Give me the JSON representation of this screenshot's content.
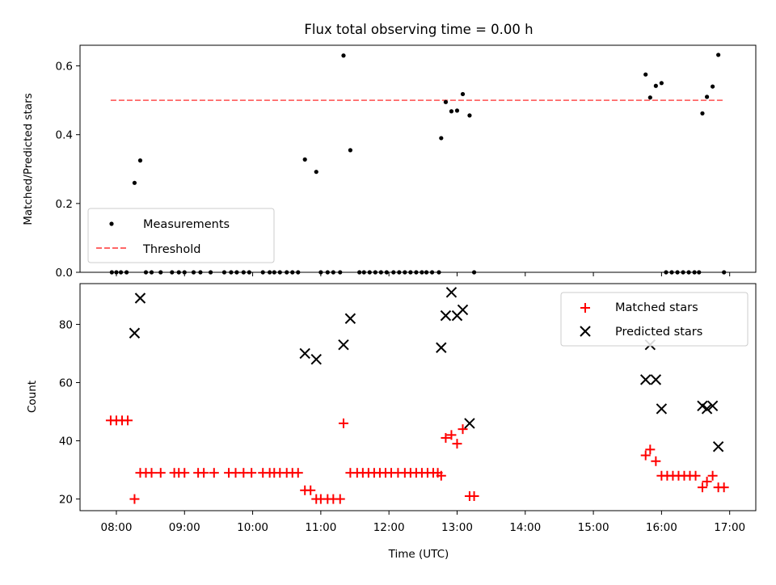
{
  "chart_data": [
    {
      "type": "scatter",
      "title": "Flux total observing time = 0.00 h",
      "xlabel": "",
      "ylabel": "Matched/Predicted stars",
      "xlim": [
        "07:28",
        "17:23"
      ],
      "ylim": [
        0,
        0.66
      ],
      "yticks": [
        "0.0",
        "0.2",
        "0.4",
        "0.6"
      ],
      "grid": false,
      "legend_position": "lower-left",
      "series": [
        {
          "name": "Measurements",
          "marker": "dot",
          "color": "#000000",
          "points": [
            [
              "07:56",
              0
            ],
            [
              "08:00",
              0
            ],
            [
              "08:04",
              0
            ],
            [
              "08:09",
              0
            ],
            [
              "08:16",
              0.26
            ],
            [
              "08:21",
              0.325
            ],
            [
              "08:26",
              0
            ],
            [
              "08:31",
              0
            ],
            [
              "08:39",
              0
            ],
            [
              "08:49",
              0
            ],
            [
              "08:55",
              0
            ],
            [
              "09:00",
              0
            ],
            [
              "09:08",
              0
            ],
            [
              "09:14",
              0
            ],
            [
              "09:23",
              0
            ],
            [
              "09:35",
              0
            ],
            [
              "09:41",
              0
            ],
            [
              "09:46",
              0
            ],
            [
              "09:52",
              0
            ],
            [
              "09:57",
              0
            ],
            [
              "10:09",
              0
            ],
            [
              "10:15",
              0
            ],
            [
              "10:19",
              0
            ],
            [
              "10:24",
              0
            ],
            [
              "10:30",
              0
            ],
            [
              "10:35",
              0
            ],
            [
              "10:40",
              0
            ],
            [
              "10:46",
              0.328
            ],
            [
              "10:56",
              0.292
            ],
            [
              "11:00",
              0
            ],
            [
              "11:06",
              0
            ],
            [
              "11:11",
              0
            ],
            [
              "11:17",
              0
            ],
            [
              "11:20",
              0.63
            ],
            [
              "11:26",
              0.355
            ],
            [
              "11:34",
              0
            ],
            [
              "11:38",
              0
            ],
            [
              "11:43",
              0
            ],
            [
              "11:48",
              0
            ],
            [
              "11:53",
              0
            ],
            [
              "11:58",
              0
            ],
            [
              "12:04",
              0
            ],
            [
              "12:09",
              0
            ],
            [
              "12:14",
              0
            ],
            [
              "12:19",
              0
            ],
            [
              "12:24",
              0
            ],
            [
              "12:29",
              0
            ],
            [
              "12:33",
              0
            ],
            [
              "12:38",
              0
            ],
            [
              "12:44",
              0
            ],
            [
              "12:46",
              0.39
            ],
            [
              "12:50",
              0.495
            ],
            [
              "12:55",
              0.468
            ],
            [
              "13:00",
              0.47
            ],
            [
              "13:05",
              0.518
            ],
            [
              "13:11",
              0.456
            ],
            [
              "13:15",
              0
            ],
            [
              "15:46",
              0.575
            ],
            [
              "15:50",
              0.508
            ],
            [
              "15:55",
              0.542
            ],
            [
              "16:00",
              0.55
            ],
            [
              "16:04",
              0
            ],
            [
              "16:09",
              0
            ],
            [
              "16:14",
              0
            ],
            [
              "16:19",
              0
            ],
            [
              "16:24",
              0
            ],
            [
              "16:29",
              0
            ],
            [
              "16:33",
              0
            ],
            [
              "16:36",
              0.462
            ],
            [
              "16:40",
              0.51
            ],
            [
              "16:45",
              0.54
            ],
            [
              "16:50",
              0.632
            ],
            [
              "16:55",
              0
            ]
          ]
        },
        {
          "name": "Threshold",
          "style": "dashed",
          "color": "#ff6666",
          "x": [
            "07:55",
            "16:55"
          ],
          "values": [
            0.5,
            0.5
          ]
        }
      ]
    },
    {
      "type": "scatter",
      "title": "",
      "xlabel": "Time (UTC)",
      "ylabel": "Count",
      "xlim": [
        "07:28",
        "17:23"
      ],
      "ylim": [
        16,
        94
      ],
      "xticks": [
        "08:00",
        "09:00",
        "10:00",
        "11:00",
        "12:00",
        "13:00",
        "14:00",
        "15:00",
        "16:00",
        "17:00"
      ],
      "yticks": [
        "20",
        "40",
        "60",
        "80"
      ],
      "grid": false,
      "legend_position": "top-right",
      "series": [
        {
          "name": "Matched stars",
          "marker": "plus",
          "color": "#ff0000",
          "points": [
            [
              "07:55",
              47
            ],
            [
              "08:00",
              47
            ],
            [
              "08:05",
              47
            ],
            [
              "08:10",
              47
            ],
            [
              "08:16",
              20
            ],
            [
              "08:21",
              29
            ],
            [
              "08:26",
              29
            ],
            [
              "08:31",
              29
            ],
            [
              "08:39",
              29
            ],
            [
              "08:51",
              29
            ],
            [
              "08:55",
              29
            ],
            [
              "09:00",
              29
            ],
            [
              "09:12",
              29
            ],
            [
              "09:17",
              29
            ],
            [
              "09:26",
              29
            ],
            [
              "09:39",
              29
            ],
            [
              "09:45",
              29
            ],
            [
              "09:52",
              29
            ],
            [
              "09:59",
              29
            ],
            [
              "10:09",
              29
            ],
            [
              "10:15",
              29
            ],
            [
              "10:19",
              29
            ],
            [
              "10:24",
              29
            ],
            [
              "10:30",
              29
            ],
            [
              "10:35",
              29
            ],
            [
              "10:40",
              29
            ],
            [
              "10:46",
              23
            ],
            [
              "10:51",
              23
            ],
            [
              "10:56",
              20
            ],
            [
              "11:00",
              20
            ],
            [
              "11:06",
              20
            ],
            [
              "11:11",
              20
            ],
            [
              "11:17",
              20
            ],
            [
              "11:20",
              46
            ],
            [
              "11:26",
              29
            ],
            [
              "11:32",
              29
            ],
            [
              "11:37",
              29
            ],
            [
              "11:42",
              29
            ],
            [
              "11:47",
              29
            ],
            [
              "11:52",
              29
            ],
            [
              "11:57",
              29
            ],
            [
              "12:02",
              29
            ],
            [
              "12:08",
              29
            ],
            [
              "12:14",
              29
            ],
            [
              "12:19",
              29
            ],
            [
              "12:24",
              29
            ],
            [
              "12:29",
              29
            ],
            [
              "12:34",
              29
            ],
            [
              "12:39",
              29
            ],
            [
              "12:43",
              29
            ],
            [
              "12:46",
              28
            ],
            [
              "12:50",
              41
            ],
            [
              "12:55",
              42
            ],
            [
              "13:00",
              39
            ],
            [
              "13:05",
              44
            ],
            [
              "13:11",
              21
            ],
            [
              "13:15",
              21
            ],
            [
              "15:46",
              35
            ],
            [
              "15:50",
              37
            ],
            [
              "15:55",
              33
            ],
            [
              "16:00",
              28
            ],
            [
              "16:05",
              28
            ],
            [
              "16:10",
              28
            ],
            [
              "16:15",
              28
            ],
            [
              "16:20",
              28
            ],
            [
              "16:25",
              28
            ],
            [
              "16:30",
              28
            ],
            [
              "16:36",
              24
            ],
            [
              "16:40",
              26
            ],
            [
              "16:45",
              28
            ],
            [
              "16:50",
              24
            ],
            [
              "16:55",
              24
            ]
          ]
        },
        {
          "name": "Predicted stars",
          "marker": "x",
          "color": "#000000",
          "points": [
            [
              "08:16",
              77
            ],
            [
              "08:21",
              89
            ],
            [
              "10:46",
              70
            ],
            [
              "10:56",
              68
            ],
            [
              "11:20",
              73
            ],
            [
              "11:26",
              82
            ],
            [
              "12:46",
              72
            ],
            [
              "12:50",
              83
            ],
            [
              "12:55",
              91
            ],
            [
              "13:00",
              83
            ],
            [
              "13:05",
              85
            ],
            [
              "13:11",
              46
            ],
            [
              "15:46",
              61
            ],
            [
              "15:50",
              73
            ],
            [
              "15:55",
              61
            ],
            [
              "16:00",
              51
            ],
            [
              "16:36",
              52
            ],
            [
              "16:40",
              51
            ],
            [
              "16:45",
              52
            ],
            [
              "16:50",
              38
            ]
          ]
        }
      ]
    }
  ]
}
